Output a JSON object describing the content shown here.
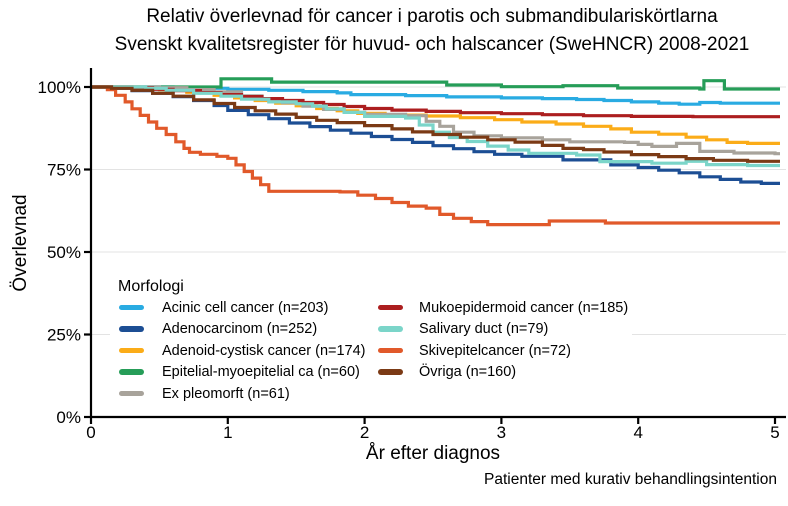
{
  "chart_data": {
    "type": "line",
    "subtype": "kaplan-meier-step-relative-survival",
    "title": "Relativ överlevnad för cancer i parotis och submandibulariskörtlarna",
    "subtitle": "Svenskt kvalitetsregister för huvud- och halscancer (SweHNCR) 2008-2021",
    "xlabel": "År efter diagnos",
    "ylabel": "Överlevnad",
    "caption": "Patienter med kurativ behandlingsintention",
    "legend_title": "Morfologi",
    "legend_position": "inside bottom-left, two columns, white background",
    "xlim": [
      0,
      5
    ],
    "ylim": [
      0,
      103
    ],
    "x_tick_values": [
      0,
      1,
      2,
      3,
      4,
      5
    ],
    "x_tick_labels": [
      "0",
      "1",
      "2",
      "3",
      "4",
      "5"
    ],
    "y_tick_values": [
      0,
      25,
      50,
      75,
      100
    ],
    "y_tick_labels": [
      "0%",
      "25%",
      "50%",
      "75%",
      "100%"
    ],
    "grid": "horizontal gridlines only, light gray",
    "grid_color": "#e3e3e3",
    "axis_color": "#000000",
    "series": [
      {
        "id": "acinic-cell-cancer",
        "name": "Acinic cell cancer",
        "n": 203,
        "label": "Acinic cell cancer (n=203)",
        "color": "#29ABE2",
        "points": [
          [
            0,
            100
          ],
          [
            0.55,
            100
          ],
          [
            0.6,
            99.6
          ],
          [
            1.0,
            99.3
          ],
          [
            1.3,
            99.0
          ],
          [
            1.55,
            98.6
          ],
          [
            1.8,
            98.2
          ],
          [
            1.9,
            97.7
          ],
          [
            2.3,
            97.4
          ],
          [
            2.6,
            97.0
          ],
          [
            3.0,
            96.7
          ],
          [
            3.3,
            96.5
          ],
          [
            3.55,
            96.2
          ],
          [
            3.75,
            95.9
          ],
          [
            3.95,
            95.5
          ],
          [
            4.15,
            95.1
          ],
          [
            4.3,
            94.8
          ],
          [
            4.45,
            95.3
          ],
          [
            4.6,
            95.1
          ],
          [
            5,
            95.1
          ]
        ]
      },
      {
        "id": "adenocarcinom",
        "name": "Adenocarcinom",
        "n": 252,
        "label": "Adenocarcinom (n=252)",
        "color": "#1C4E94",
        "points": [
          [
            0,
            100
          ],
          [
            0.15,
            99.6
          ],
          [
            0.3,
            98.9
          ],
          [
            0.45,
            98.1
          ],
          [
            0.6,
            97.1
          ],
          [
            0.75,
            95.9
          ],
          [
            0.9,
            94.4
          ],
          [
            1.0,
            92.9
          ],
          [
            1.15,
            91.6
          ],
          [
            1.3,
            90.4
          ],
          [
            1.45,
            89.1
          ],
          [
            1.6,
            88.0
          ],
          [
            1.75,
            86.9
          ],
          [
            1.9,
            86.0
          ],
          [
            2.05,
            85.0
          ],
          [
            2.2,
            84.1
          ],
          [
            2.35,
            83.2
          ],
          [
            2.5,
            82.2
          ],
          [
            2.65,
            81.3
          ],
          [
            2.8,
            80.4
          ],
          [
            2.95,
            79.6
          ],
          [
            3.15,
            79.0
          ],
          [
            3.45,
            77.9
          ],
          [
            3.8,
            76.4
          ],
          [
            4.0,
            75.6
          ],
          [
            4.15,
            74.8
          ],
          [
            4.3,
            74.0
          ],
          [
            4.45,
            72.8
          ],
          [
            4.6,
            72.0
          ],
          [
            4.75,
            71.2
          ],
          [
            4.9,
            70.8
          ],
          [
            5,
            70.8
          ]
        ]
      },
      {
        "id": "adenoid-cystisk-cancer",
        "name": "Adenoid-cystisk cancer",
        "n": 174,
        "label": "Adenoid-cystisk cancer (n=174)",
        "color": "#FBAC18",
        "points": [
          [
            0,
            100
          ],
          [
            0.35,
            99.7
          ],
          [
            0.5,
            99.2
          ],
          [
            0.7,
            98.4
          ],
          [
            0.9,
            97.5
          ],
          [
            1.05,
            96.7
          ],
          [
            1.2,
            95.9
          ],
          [
            1.35,
            95.1
          ],
          [
            1.5,
            94.3
          ],
          [
            1.65,
            93.5
          ],
          [
            1.8,
            92.8
          ],
          [
            1.95,
            92.0
          ],
          [
            2.15,
            91.5
          ],
          [
            2.45,
            91.2
          ],
          [
            2.7,
            90.7
          ],
          [
            2.95,
            90.1
          ],
          [
            3.15,
            89.4
          ],
          [
            3.4,
            88.8
          ],
          [
            3.6,
            88.1
          ],
          [
            3.8,
            87.3
          ],
          [
            3.95,
            86.3
          ],
          [
            4.15,
            85.7
          ],
          [
            4.35,
            84.8
          ],
          [
            4.5,
            84.0
          ],
          [
            4.65,
            83.2
          ],
          [
            4.8,
            82.9
          ],
          [
            5,
            82.9
          ]
        ]
      },
      {
        "id": "epitelial-myoepitelial-ca",
        "name": "Epitelial-myoepitelial ca",
        "n": 60,
        "label": "Epitelial-myoepitelial ca (n=60)",
        "color": "#269D58",
        "points": [
          [
            0,
            100
          ],
          [
            0.92,
            100
          ],
          [
            0.95,
            102.5
          ],
          [
            1.28,
            102.5
          ],
          [
            1.32,
            101.5
          ],
          [
            2.55,
            101.5
          ],
          [
            2.6,
            100.6
          ],
          [
            3.0,
            100.1
          ],
          [
            3.45,
            100.4
          ],
          [
            3.85,
            99.7
          ],
          [
            4.45,
            99.4
          ],
          [
            4.48,
            101.9
          ],
          [
            4.6,
            101.9
          ],
          [
            4.63,
            99.4
          ],
          [
            5,
            99.4
          ]
        ]
      },
      {
        "id": "ex-pleomorft",
        "name": "Ex pleomorft",
        "n": 61,
        "label": "Ex pleomorft (n=61)",
        "color": "#A8A39B",
        "points": [
          [
            0,
            100
          ],
          [
            0.5,
            99.8
          ],
          [
            0.7,
            99.2
          ],
          [
            0.9,
            98.5
          ],
          [
            1.1,
            97.3
          ],
          [
            1.25,
            96.2
          ],
          [
            1.4,
            95.2
          ],
          [
            1.55,
            94.2
          ],
          [
            1.7,
            93.2
          ],
          [
            1.85,
            92.3
          ],
          [
            2.0,
            91.7
          ],
          [
            2.3,
            91.3
          ],
          [
            2.45,
            89.6
          ],
          [
            2.55,
            88.1
          ],
          [
            2.65,
            86.3
          ],
          [
            2.8,
            85.2
          ],
          [
            3.0,
            84.6
          ],
          [
            3.3,
            84.0
          ],
          [
            3.5,
            83.4
          ],
          [
            3.9,
            83.2
          ],
          [
            4.0,
            82.6
          ],
          [
            4.1,
            82.0
          ],
          [
            4.28,
            82.9
          ],
          [
            4.45,
            80.5
          ],
          [
            4.7,
            80.0
          ],
          [
            5,
            79.8
          ]
        ]
      },
      {
        "id": "mukoepidermoid-cancer",
        "name": "Mukoepidermoid cancer",
        "n": 185,
        "label": "Mukoepidermoid cancer (n=185)",
        "color": "#AC1E1F",
        "points": [
          [
            0,
            100
          ],
          [
            0.3,
            99.8
          ],
          [
            0.45,
            99.3
          ],
          [
            0.6,
            98.9
          ],
          [
            0.8,
            98.3
          ],
          [
            0.95,
            97.7
          ],
          [
            1.1,
            97.1
          ],
          [
            1.25,
            96.5
          ],
          [
            1.4,
            95.9
          ],
          [
            1.55,
            95.3
          ],
          [
            1.7,
            94.7
          ],
          [
            1.85,
            94.1
          ],
          [
            2.0,
            93.5
          ],
          [
            2.2,
            93.0
          ],
          [
            2.45,
            92.6
          ],
          [
            2.7,
            92.2
          ],
          [
            3.0,
            91.9
          ],
          [
            3.3,
            91.6
          ],
          [
            3.6,
            91.3
          ],
          [
            3.95,
            91.1
          ],
          [
            4.4,
            91.0
          ],
          [
            5,
            91.0
          ]
        ]
      },
      {
        "id": "salivary-duct",
        "name": "Salivary duct",
        "n": 79,
        "label": "Salivary duct (n=79)",
        "color": "#7BD5C9",
        "points": [
          [
            0,
            100
          ],
          [
            0.4,
            99.6
          ],
          [
            0.55,
            99.0
          ],
          [
            0.75,
            98.1
          ],
          [
            0.95,
            97.2
          ],
          [
            1.1,
            96.3
          ],
          [
            1.3,
            95.5
          ],
          [
            1.5,
            94.9
          ],
          [
            1.62,
            94.2
          ],
          [
            1.72,
            93.4
          ],
          [
            1.85,
            92.3
          ],
          [
            2.0,
            91.1
          ],
          [
            2.3,
            90.6
          ],
          [
            2.4,
            88.5
          ],
          [
            2.5,
            86.3
          ],
          [
            2.62,
            84.7
          ],
          [
            2.75,
            83.5
          ],
          [
            2.9,
            82.1
          ],
          [
            3.05,
            80.9
          ],
          [
            3.2,
            79.9
          ],
          [
            3.55,
            79.4
          ],
          [
            3.72,
            77.4
          ],
          [
            4.1,
            76.9
          ],
          [
            4.35,
            77.5
          ],
          [
            4.5,
            76.5
          ],
          [
            4.8,
            76.2
          ],
          [
            5,
            76.2
          ]
        ]
      },
      {
        "id": "skivepitelcancer",
        "name": "Skivepitelcancer",
        "n": 72,
        "label": "Skivepitelcancer (n=72)",
        "color": "#E1592A",
        "points": [
          [
            0,
            100
          ],
          [
            0.12,
            99.2
          ],
          [
            0.18,
            97.5
          ],
          [
            0.25,
            95.5
          ],
          [
            0.3,
            93.4
          ],
          [
            0.36,
            91.4
          ],
          [
            0.42,
            89.4
          ],
          [
            0.48,
            87.5
          ],
          [
            0.55,
            85.6
          ],
          [
            0.62,
            83.4
          ],
          [
            0.68,
            81.4
          ],
          [
            0.72,
            80.2
          ],
          [
            0.8,
            79.6
          ],
          [
            0.92,
            79.0
          ],
          [
            1.0,
            78.4
          ],
          [
            1.06,
            76.4
          ],
          [
            1.12,
            74.4
          ],
          [
            1.18,
            72.4
          ],
          [
            1.24,
            70.4
          ],
          [
            1.3,
            68.4
          ],
          [
            1.82,
            68.2
          ],
          [
            1.95,
            67.2
          ],
          [
            2.08,
            66.2
          ],
          [
            2.2,
            65.0
          ],
          [
            2.32,
            63.9
          ],
          [
            2.45,
            63.3
          ],
          [
            2.55,
            61.4
          ],
          [
            2.65,
            60.2
          ],
          [
            2.78,
            59.2
          ],
          [
            2.9,
            58.3
          ],
          [
            3.3,
            58.3
          ],
          [
            3.35,
            59.4
          ],
          [
            3.76,
            58.8
          ],
          [
            5,
            58.8
          ]
        ]
      },
      {
        "id": "ovriga",
        "name": "Övriga",
        "n": 160,
        "label": "Övriga (n=160)",
        "color": "#7B3A15",
        "points": [
          [
            0,
            100
          ],
          [
            0.15,
            99.6
          ],
          [
            0.3,
            99.0
          ],
          [
            0.45,
            98.1
          ],
          [
            0.6,
            97.2
          ],
          [
            0.75,
            96.1
          ],
          [
            0.9,
            95.0
          ],
          [
            1.05,
            93.8
          ],
          [
            1.2,
            92.8
          ],
          [
            1.35,
            91.8
          ],
          [
            1.5,
            90.8
          ],
          [
            1.65,
            89.9
          ],
          [
            1.8,
            89.2
          ],
          [
            2.0,
            88.3
          ],
          [
            2.2,
            87.3
          ],
          [
            2.35,
            86.4
          ],
          [
            2.5,
            85.6
          ],
          [
            2.7,
            84.8
          ],
          [
            2.9,
            84.0
          ],
          [
            3.1,
            83.3
          ],
          [
            3.3,
            82.3
          ],
          [
            3.45,
            81.4
          ],
          [
            3.6,
            81.0
          ],
          [
            3.75,
            80.3
          ],
          [
            3.95,
            79.5
          ],
          [
            4.15,
            78.9
          ],
          [
            4.35,
            78.3
          ],
          [
            4.55,
            77.8
          ],
          [
            4.8,
            77.5
          ],
          [
            5,
            77.5
          ]
        ]
      }
    ]
  }
}
